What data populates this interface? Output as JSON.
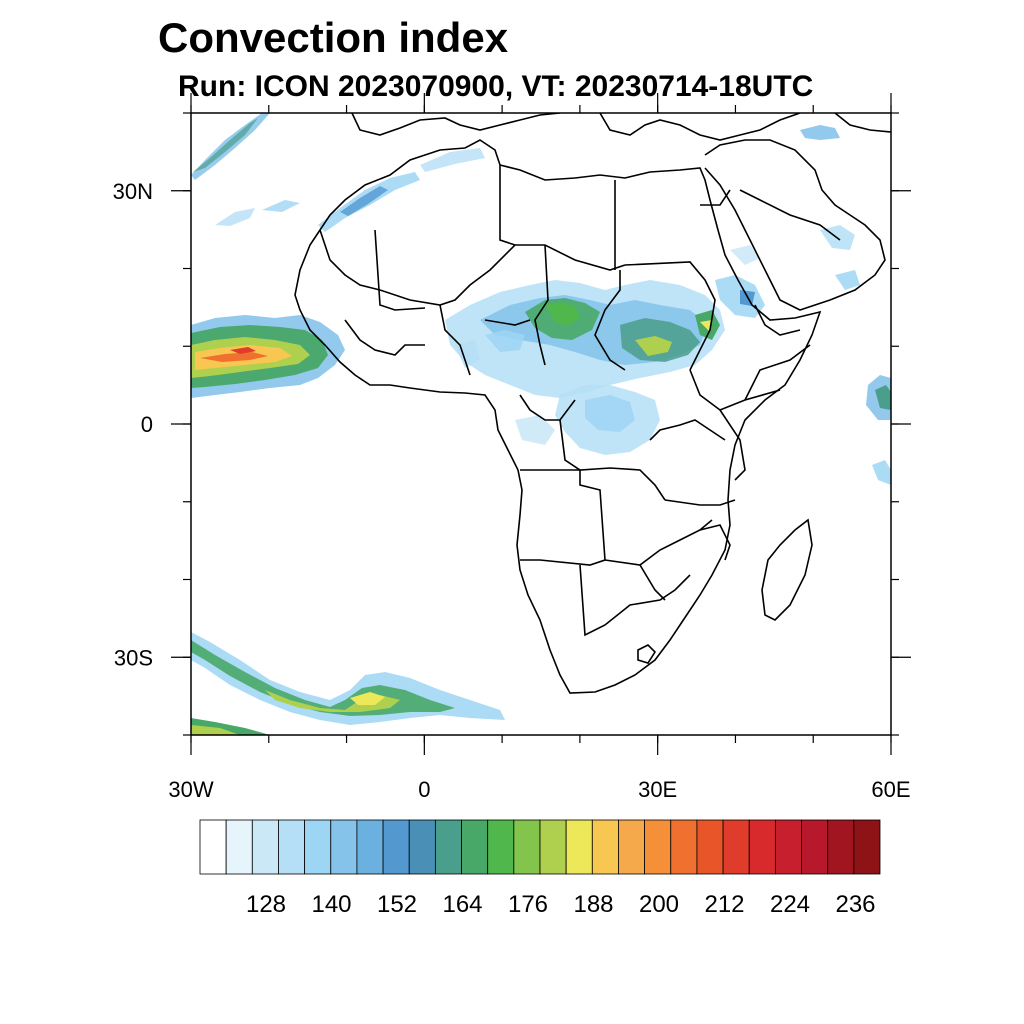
{
  "title": "Convection index",
  "subtitle": "Run: ICON 2023070900,  VT: 20230714-18UTC",
  "map": {
    "lon_range": [
      -30,
      60
    ],
    "lat_range": [
      -40,
      40
    ],
    "x_ticks": [
      {
        "value": -30,
        "label": "30W"
      },
      {
        "value": 0,
        "label": "0"
      },
      {
        "value": 30,
        "label": "30E"
      },
      {
        "value": 60,
        "label": "60E"
      }
    ],
    "y_ticks": [
      {
        "value": 30,
        "label": "30N"
      },
      {
        "value": 0,
        "label": "0"
      },
      {
        "value": -30,
        "label": "30S"
      }
    ]
  },
  "colorbar": {
    "colors": [
      "#ffffff",
      "#e6f4fc",
      "#cbe8f7",
      "#b5dff6",
      "#9dd5f4",
      "#86c3ea",
      "#6bb1e0",
      "#5398cf",
      "#4a8fb5",
      "#4a9e8c",
      "#48a868",
      "#4fb74c",
      "#83c44c",
      "#aed04e",
      "#ede75a",
      "#f8c752",
      "#f5a94a",
      "#f59038",
      "#f07030",
      "#e85529",
      "#e03c2b",
      "#d82a2c",
      "#c81f2e",
      "#b8182c",
      "#a11520",
      "#8e1317"
    ],
    "labels": [
      "128",
      "140",
      "152",
      "164",
      "176",
      "188",
      "200",
      "212",
      "224",
      "236"
    ]
  }
}
